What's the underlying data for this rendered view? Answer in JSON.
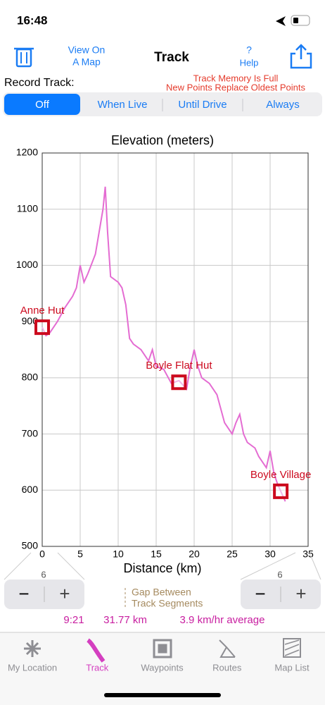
{
  "status_bar": {
    "time": "16:48"
  },
  "toolbar": {
    "view_map": [
      "View On",
      "A Map"
    ],
    "title": "Track",
    "help": [
      "?",
      "Help"
    ]
  },
  "record": {
    "label": "Record Track:",
    "warning": [
      "Track Memory Is Full",
      "New Points Replace Oldest Points"
    ],
    "options": [
      "Off",
      "When Live",
      "Until Drive",
      "Always"
    ],
    "selected": 0
  },
  "chart_data": {
    "type": "line",
    "title": "Elevation (meters)",
    "x_label": "Distance (km)",
    "xlim": [
      0,
      35
    ],
    "xticks": [
      0,
      5,
      10,
      15,
      20,
      25,
      30,
      35
    ],
    "ylim": [
      500,
      1200
    ],
    "yticks": [
      500,
      600,
      700,
      800,
      900,
      1000,
      1100,
      1200
    ],
    "grid": true,
    "series": [
      {
        "color": "#e46cd2",
        "x": [
          0,
          0.5,
          1,
          2,
          3,
          4,
          4.5,
          5,
          5.5,
          6,
          7,
          7.5,
          8,
          8.3,
          8.6,
          9,
          10,
          10.5,
          11,
          11.5,
          12,
          13,
          14,
          14.5,
          15,
          16,
          17,
          18,
          19,
          19.5,
          20,
          20.5,
          21,
          22,
          22.5,
          23,
          24,
          25,
          25.5,
          26,
          26.5,
          27,
          28,
          28.5,
          29,
          29.5,
          30,
          30.5,
          31,
          31.5,
          32
        ],
        "values": [
          890,
          875,
          880,
          900,
          925,
          945,
          960,
          1000,
          970,
          985,
          1020,
          1060,
          1100,
          1140,
          1060,
          980,
          970,
          960,
          930,
          870,
          860,
          850,
          830,
          850,
          820,
          815,
          790,
          795,
          780,
          820,
          850,
          820,
          800,
          790,
          780,
          770,
          720,
          700,
          720,
          735,
          700,
          685,
          675,
          660,
          650,
          640,
          670,
          630,
          610,
          595,
          580
        ]
      }
    ],
    "annotations": [
      {
        "text": "Anne Hut",
        "x": 0,
        "y": 890
      },
      {
        "text": "Boyle Flat Hut",
        "x": 18,
        "y": 792
      },
      {
        "text": "Boyle Village",
        "x": 31.4,
        "y": 598
      }
    ]
  },
  "steppers": {
    "left": "6",
    "right": "6",
    "minus": "−",
    "plus": "+"
  },
  "gap_label": [
    "Gap Between",
    "Track Segments"
  ],
  "stats": {
    "time": "9:21",
    "distance": "31.77 km",
    "speed": "3.9 km/hr average"
  },
  "tabs": [
    "My Location",
    "Track",
    "Waypoints",
    "Routes",
    "Map List"
  ]
}
